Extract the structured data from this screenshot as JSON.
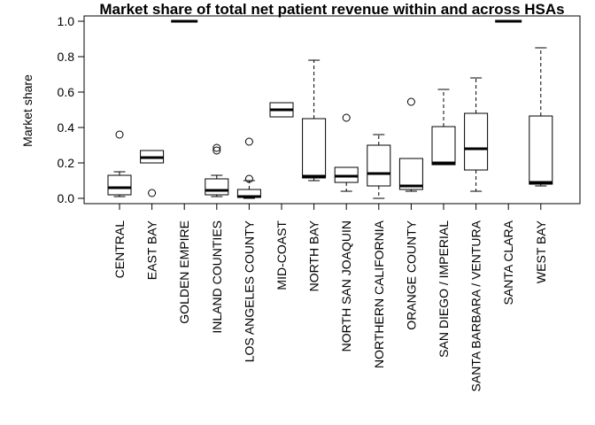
{
  "chart_data": {
    "type": "boxplot",
    "title": "Market share of total net patient revenue within and across HSAs",
    "xlabel": "",
    "ylabel": "Market share",
    "ylim": [
      -0.03,
      1.03
    ],
    "yticks": [
      "0.0",
      "0.2",
      "0.4",
      "0.6",
      "0.8",
      "1.0"
    ],
    "grid": false,
    "categories": [
      "CENTRAL",
      "EAST BAY",
      "GOLDEN EMPIRE",
      "INLAND COUNTIES",
      "LOS ANGELES COUNTY",
      "MID-COAST",
      "NORTH BAY",
      "NORTH SAN JOAQUIN",
      "NORTHERN CALIFORNIA",
      "ORANGE COUNTY",
      "SAN DIEGO / IMPERIAL",
      "SANTA BARBARA / VENTURA",
      "SANTA CLARA",
      "WEST BAY"
    ],
    "boxes": [
      {
        "min": 0.01,
        "q1": 0.02,
        "median": 0.06,
        "q3": 0.13,
        "max": 0.15,
        "outliers": [
          0.36
        ]
      },
      {
        "min": 0.2,
        "q1": 0.2,
        "median": 0.23,
        "q3": 0.27,
        "max": 0.27,
        "outliers": [
          0.03
        ]
      },
      {
        "min": 1.0,
        "q1": 1.0,
        "median": 1.0,
        "q3": 1.0,
        "max": 1.0,
        "outliers": []
      },
      {
        "min": 0.01,
        "q1": 0.02,
        "median": 0.045,
        "q3": 0.11,
        "max": 0.13,
        "outliers": [
          0.27,
          0.285
        ]
      },
      {
        "min": 0.0,
        "q1": 0.005,
        "median": 0.01,
        "q3": 0.05,
        "max": 0.1,
        "outliers": [
          0.11,
          0.32
        ]
      },
      {
        "min": 0.46,
        "q1": 0.46,
        "median": 0.5,
        "q3": 0.54,
        "max": 0.54,
        "outliers": []
      },
      {
        "min": 0.1,
        "q1": 0.115,
        "median": 0.125,
        "q3": 0.45,
        "max": 0.78,
        "outliers": []
      },
      {
        "min": 0.04,
        "q1": 0.09,
        "median": 0.125,
        "q3": 0.175,
        "max": 0.175,
        "outliers": [
          0.455
        ]
      },
      {
        "min": 0.0,
        "q1": 0.07,
        "median": 0.14,
        "q3": 0.3,
        "max": 0.36,
        "outliers": []
      },
      {
        "min": 0.04,
        "q1": 0.05,
        "median": 0.07,
        "q3": 0.225,
        "max": 0.225,
        "outliers": [
          0.545
        ]
      },
      {
        "min": 0.19,
        "q1": 0.19,
        "median": 0.2,
        "q3": 0.405,
        "max": 0.615,
        "outliers": []
      },
      {
        "min": 0.04,
        "q1": 0.16,
        "median": 0.28,
        "q3": 0.48,
        "max": 0.68,
        "outliers": []
      },
      {
        "min": 1.0,
        "q1": 1.0,
        "median": 1.0,
        "q3": 1.0,
        "max": 1.0,
        "outliers": []
      },
      {
        "min": 0.07,
        "q1": 0.08,
        "median": 0.09,
        "q3": 0.465,
        "max": 0.85,
        "outliers": []
      }
    ]
  }
}
